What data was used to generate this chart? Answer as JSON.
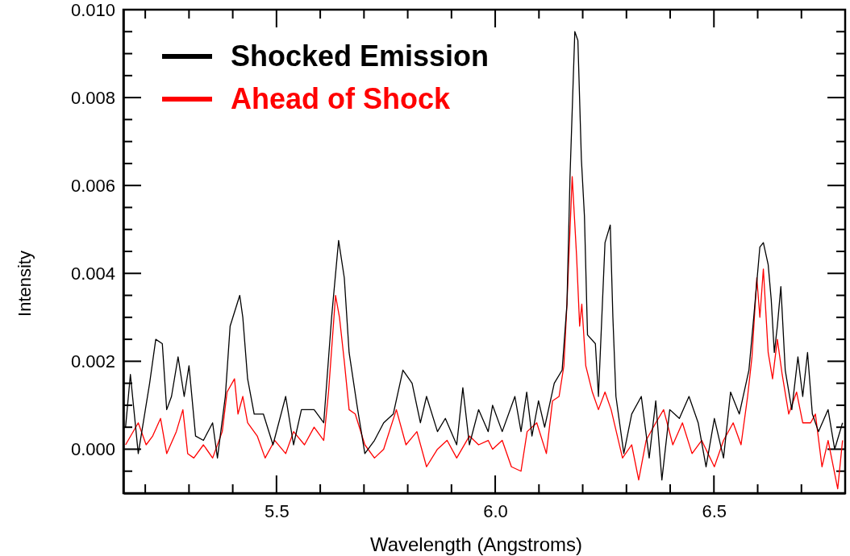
{
  "chart_data": {
    "type": "line",
    "xlabel": "Wavelength (Angstroms)",
    "ylabel": "Intensity",
    "legend": "top left",
    "line_style": "solid",
    "marker": "none",
    "grid": false,
    "xlim": [
      5.15,
      6.8
    ],
    "ylim": [
      -0.001,
      0.01
    ],
    "xticks": [
      {
        "value": 5.2,
        "label": null
      },
      {
        "value": 5.3,
        "label": null
      },
      {
        "value": 5.4,
        "label": null
      },
      {
        "value": 5.5,
        "label": "5.5"
      },
      {
        "value": 5.6,
        "label": null
      },
      {
        "value": 5.7,
        "label": null
      },
      {
        "value": 5.8,
        "label": null
      },
      {
        "value": 5.9,
        "label": null
      },
      {
        "value": 6.0,
        "label": "6.0"
      },
      {
        "value": 6.1,
        "label": null
      },
      {
        "value": 6.2,
        "label": null
      },
      {
        "value": 6.3,
        "label": null
      },
      {
        "value": 6.4,
        "label": null
      },
      {
        "value": 6.5,
        "label": "6.5"
      },
      {
        "value": 6.6,
        "label": null
      },
      {
        "value": 6.7,
        "label": null
      }
    ],
    "yticks": [
      {
        "value": -0.0005,
        "label": null
      },
      {
        "value": 0,
        "label": "0.000"
      },
      {
        "value": 0.0005,
        "label": null
      },
      {
        "value": 0.001,
        "label": null
      },
      {
        "value": 0.0015,
        "label": null
      },
      {
        "value": 0.002,
        "label": "0.002"
      },
      {
        "value": 0.0025,
        "label": null
      },
      {
        "value": 0.003,
        "label": null
      },
      {
        "value": 0.0035,
        "label": null
      },
      {
        "value": 0.004,
        "label": "0.004"
      },
      {
        "value": 0.0045,
        "label": null
      },
      {
        "value": 0.005,
        "label": null
      },
      {
        "value": 0.0055,
        "label": null
      },
      {
        "value": 0.006,
        "label": "0.006"
      },
      {
        "value": 0.0065,
        "label": null
      },
      {
        "value": 0.007,
        "label": null
      },
      {
        "value": 0.0075,
        "label": null
      },
      {
        "value": 0.008,
        "label": "0.008"
      },
      {
        "value": 0.0085,
        "label": null
      },
      {
        "value": 0.009,
        "label": null
      },
      {
        "value": 0.0095,
        "label": null
      },
      {
        "value": 0.01,
        "label": "0.010"
      }
    ],
    "series": [
      {
        "name": "Shocked Emission",
        "color": "#000000",
        "x": [
          5.155,
          5.166,
          5.184,
          5.21,
          5.224,
          5.239,
          5.249,
          5.26,
          5.275,
          5.289,
          5.3,
          5.315,
          5.333,
          5.354,
          5.365,
          5.383,
          5.394,
          5.416,
          5.423,
          5.434,
          5.449,
          5.47,
          5.492,
          5.521,
          5.539,
          5.557,
          5.586,
          5.608,
          5.626,
          5.642,
          5.655,
          5.666,
          5.684,
          5.702,
          5.724,
          5.745,
          5.767,
          5.789,
          5.81,
          5.829,
          5.843,
          5.868,
          5.886,
          5.912,
          5.926,
          5.941,
          5.962,
          5.984,
          5.994,
          6.016,
          6.045,
          6.059,
          6.072,
          6.084,
          6.099,
          6.113,
          6.135,
          6.153,
          6.164,
          6.171,
          6.182,
          6.189,
          6.197,
          6.204,
          6.211,
          6.229,
          6.236,
          6.251,
          6.263,
          6.269,
          6.276,
          6.294,
          6.312,
          6.334,
          6.352,
          6.367,
          6.381,
          6.399,
          6.421,
          6.443,
          6.464,
          6.482,
          6.501,
          6.522,
          6.538,
          6.558,
          6.58,
          6.591,
          6.605,
          6.613,
          6.624,
          6.631,
          6.638,
          6.645,
          6.653,
          6.663,
          6.678,
          6.692,
          6.703,
          6.714,
          6.725,
          6.739,
          6.761,
          6.776,
          6.794
        ],
        "values": [
          0.0005,
          0.0017,
          -0.0001,
          0.0015,
          0.0025,
          0.0024,
          0.0009,
          0.0012,
          0.0021,
          0.0012,
          0.0019,
          0.0003,
          0.0002,
          0.0006,
          -0.0002,
          0.0012,
          0.0028,
          0.0035,
          0.003,
          0.0016,
          0.0008,
          0.0008,
          0.0001,
          0.0012,
          0.0001,
          0.0009,
          0.0009,
          0.0006,
          0.003,
          0.00475,
          0.0039,
          0.0022,
          0.001,
          -0.0001,
          0.0002,
          0.0006,
          0.0008,
          0.0018,
          0.0015,
          0.0006,
          0.0012,
          0.0004,
          0.0007,
          0.0001,
          0.0014,
          0.0001,
          0.0009,
          0.0004,
          0.001,
          0.0004,
          0.0012,
          0.0004,
          0.0013,
          0.0003,
          0.0011,
          0.0005,
          0.0015,
          0.0018,
          0.0033,
          0.0062,
          0.0095,
          0.0093,
          0.0066,
          0.0053,
          0.0026,
          0.0024,
          0.0012,
          0.0047,
          0.0051,
          0.003,
          0.0012,
          -0.0001,
          0.0008,
          0.0012,
          -0.0002,
          0.0011,
          -0.0007,
          0.0009,
          0.0007,
          0.0012,
          0.0006,
          -0.0004,
          0.0007,
          -0.0002,
          0.0013,
          0.0008,
          0.0018,
          0.003,
          0.0046,
          0.0047,
          0.0042,
          0.0034,
          0.0022,
          0.0028,
          0.0037,
          0.0018,
          0.0009,
          0.0021,
          0.0012,
          0.0022,
          0.0008,
          0.0004,
          0.0009,
          0.0,
          0.0006
        ]
      },
      {
        "name": "Ahead of Shock",
        "color": "#ff0000",
        "x": [
          5.155,
          5.184,
          5.202,
          5.217,
          5.235,
          5.249,
          5.271,
          5.286,
          5.297,
          5.311,
          5.333,
          5.354,
          5.376,
          5.387,
          5.404,
          5.412,
          5.423,
          5.434,
          5.456,
          5.474,
          5.496,
          5.521,
          5.539,
          5.564,
          5.586,
          5.608,
          5.619,
          5.635,
          5.644,
          5.655,
          5.666,
          5.68,
          5.702,
          5.724,
          5.745,
          5.774,
          5.796,
          5.821,
          5.843,
          5.868,
          5.89,
          5.912,
          5.941,
          5.962,
          5.984,
          5.994,
          6.016,
          6.037,
          6.059,
          6.073,
          6.095,
          6.117,
          6.131,
          6.146,
          6.157,
          6.164,
          6.176,
          6.186,
          6.193,
          6.198,
          6.207,
          6.222,
          6.236,
          6.251,
          6.265,
          6.291,
          6.312,
          6.328,
          6.345,
          6.367,
          6.385,
          6.406,
          6.428,
          6.45,
          6.472,
          6.501,
          6.522,
          6.544,
          6.562,
          6.577,
          6.587,
          6.598,
          6.605,
          6.613,
          6.624,
          6.634,
          6.645,
          6.656,
          6.671,
          6.689,
          6.703,
          6.721,
          6.732,
          6.747,
          6.761,
          6.783,
          6.794
        ],
        "values": [
          0.0001,
          0.0006,
          0.0001,
          0.0003,
          0.0007,
          -0.0001,
          0.0004,
          0.0009,
          -0.0001,
          -0.0002,
          0.0001,
          -0.0002,
          0.0004,
          0.0013,
          0.0016,
          0.0008,
          0.0012,
          0.0006,
          0.0003,
          -0.0002,
          0.0002,
          -0.0001,
          0.0004,
          0.0001,
          0.0005,
          0.0002,
          0.0013,
          0.0035,
          0.003,
          0.002,
          0.0009,
          0.0008,
          0.0001,
          -0.0002,
          0.0,
          0.0009,
          0.0001,
          0.0004,
          -0.0004,
          0.0,
          0.0002,
          -0.0002,
          0.0003,
          0.0001,
          0.0002,
          0.0,
          0.0002,
          -0.0004,
          -0.0005,
          0.0004,
          0.0006,
          -0.0001,
          0.0011,
          0.0012,
          0.0019,
          0.0033,
          0.0062,
          0.0044,
          0.0028,
          0.0033,
          0.0019,
          0.0013,
          0.0009,
          0.0013,
          0.0009,
          -0.0002,
          0.0001,
          -0.0007,
          0.0002,
          0.0006,
          0.0009,
          0.0001,
          0.0006,
          -0.0001,
          0.0002,
          -0.0004,
          0.0002,
          0.0006,
          0.0001,
          0.0012,
          0.0021,
          0.0039,
          0.003,
          0.0041,
          0.0022,
          0.0016,
          0.0025,
          0.0017,
          0.0008,
          0.0013,
          0.0006,
          0.0006,
          0.0008,
          -0.0004,
          0.0002,
          -0.0009,
          0.0002
        ]
      }
    ]
  }
}
